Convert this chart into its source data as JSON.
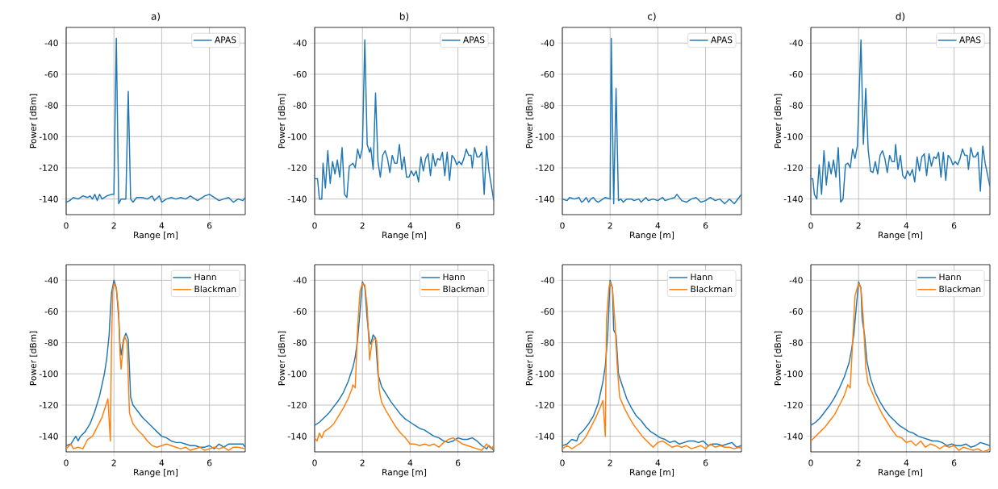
{
  "chart_data": [
    {
      "type": "line",
      "title": "a)",
      "xlabel": "Range [m]",
      "ylabel": "Power [dBm]",
      "xlim": [
        0,
        7.5
      ],
      "ylim": [
        -150,
        -30
      ],
      "xticks": [
        0,
        2,
        4,
        6
      ],
      "yticks": [
        -140,
        -120,
        -100,
        -80,
        -60,
        -40
      ],
      "grid": true,
      "legend": "top right",
      "series": [
        {
          "name": "APAS",
          "color": "#1f77b4",
          "x": [
            0,
            0.15,
            0.3,
            0.5,
            0.7,
            0.9,
            1.0,
            1.1,
            1.2,
            1.3,
            1.4,
            1.5,
            1.7,
            1.9,
            2.0,
            2.1,
            2.2,
            2.3,
            2.5,
            2.6,
            2.7,
            2.8,
            2.95,
            3.2,
            3.4,
            3.6,
            3.7,
            3.9,
            4.0,
            4.2,
            4.4,
            4.6,
            4.8,
            5.0,
            5.2,
            5.4,
            5.5,
            5.8,
            6.0,
            6.2,
            6.4,
            6.6,
            6.8,
            7.0,
            7.2,
            7.4,
            7.5
          ],
          "values": [
            -142,
            -141,
            -139,
            -140,
            -138,
            -139,
            -138,
            -140,
            -137,
            -141,
            -137,
            -140,
            -138,
            -137,
            -137,
            -37,
            -143,
            -140,
            -140,
            -71,
            -140,
            -142,
            -139,
            -139,
            -140,
            -138,
            -141,
            -138,
            -142,
            -140,
            -139,
            -140,
            -139,
            -140,
            -138,
            -140,
            -141,
            -138,
            -137,
            -139,
            -141,
            -140,
            -139,
            -142,
            -140,
            -141,
            -139
          ]
        }
      ]
    },
    {
      "type": "line",
      "title": "b)",
      "xlabel": "Range [m]",
      "ylabel": "Power [dBm]",
      "xlim": [
        0,
        7.5
      ],
      "ylim": [
        -150,
        -30
      ],
      "xticks": [
        0,
        2,
        4,
        6
      ],
      "yticks": [
        -140,
        -120,
        -100,
        -80,
        -60,
        -40
      ],
      "grid": true,
      "legend": "top right",
      "series": [
        {
          "name": "APAS",
          "color": "#1f77b4",
          "x": [
            0,
            0.12,
            0.2,
            0.3,
            0.35,
            0.45,
            0.55,
            0.65,
            0.75,
            0.85,
            0.95,
            1.05,
            1.15,
            1.25,
            1.35,
            1.45,
            1.6,
            1.7,
            1.8,
            1.9,
            2.0,
            2.1,
            2.2,
            2.3,
            2.35,
            2.45,
            2.55,
            2.65,
            2.75,
            2.85,
            2.95,
            3.05,
            3.15,
            3.25,
            3.35,
            3.45,
            3.55,
            3.65,
            3.75,
            3.85,
            3.95,
            4.05,
            4.15,
            4.25,
            4.35,
            4.45,
            4.55,
            4.65,
            4.75,
            4.85,
            4.95,
            5.05,
            5.15,
            5.25,
            5.35,
            5.45,
            5.55,
            5.65,
            5.75,
            5.85,
            5.95,
            6.05,
            6.15,
            6.25,
            6.35,
            6.45,
            6.55,
            6.6,
            6.7,
            6.8,
            6.9,
            7.0,
            7.1,
            7.2,
            7.3,
            7.5
          ],
          "values": [
            -127,
            -127,
            -140,
            -140,
            -117,
            -133,
            -109,
            -130,
            -116,
            -124,
            -115,
            -126,
            -107,
            -137,
            -139,
            -119,
            -117,
            -120,
            -108,
            -114,
            -107,
            -38,
            -105,
            -110,
            -107,
            -121,
            -72,
            -116,
            -126,
            -112,
            -109,
            -114,
            -123,
            -112,
            -117,
            -117,
            -105,
            -121,
            -113,
            -126,
            -126,
            -122,
            -125,
            -122,
            -129,
            -113,
            -122,
            -114,
            -111,
            -125,
            -111,
            -119,
            -114,
            -115,
            -110,
            -125,
            -110,
            -128,
            -112,
            -114,
            -118,
            -116,
            -118,
            -114,
            -108,
            -112,
            -112,
            -120,
            -107,
            -113,
            -113,
            -110,
            -137,
            -106,
            -122,
            -141
          ]
        }
      ]
    },
    {
      "type": "line",
      "title": "c)",
      "xlabel": "Range [m]",
      "ylabel": "Power [dBm]",
      "xlim": [
        0,
        7.5
      ],
      "ylim": [
        -150,
        -30
      ],
      "xticks": [
        0,
        2,
        4,
        6
      ],
      "yticks": [
        -140,
        -120,
        -100,
        -80,
        -60,
        -40
      ],
      "grid": true,
      "legend": "top right",
      "series": [
        {
          "name": "APAS",
          "color": "#1f77b4",
          "x": [
            0,
            0.2,
            0.3,
            0.5,
            0.7,
            0.8,
            0.9,
            1.0,
            1.1,
            1.2,
            1.3,
            1.4,
            1.5,
            1.7,
            1.8,
            2.0,
            2.05,
            2.15,
            2.25,
            2.35,
            2.45,
            2.55,
            2.7,
            2.9,
            3.0,
            3.2,
            3.3,
            3.5,
            3.6,
            3.8,
            4.0,
            4.2,
            4.3,
            4.5,
            4.7,
            4.8,
            5.0,
            5.2,
            5.4,
            5.6,
            5.8,
            6.0,
            6.2,
            6.4,
            6.6,
            6.8,
            7.0,
            7.2,
            7.4,
            7.5
          ],
          "values": [
            -140,
            -141,
            -139,
            -140,
            -139,
            -142,
            -141,
            -139,
            -142,
            -140,
            -139,
            -141,
            -142,
            -140,
            -139,
            -140,
            -37,
            -143,
            -69,
            -141,
            -140,
            -142,
            -140,
            -140,
            -141,
            -140,
            -142,
            -139,
            -141,
            -140,
            -141,
            -139,
            -141,
            -140,
            -139,
            -137,
            -141,
            -142,
            -140,
            -139,
            -142,
            -141,
            -139,
            -141,
            -140,
            -143,
            -140,
            -143,
            -139,
            -137
          ]
        }
      ]
    },
    {
      "type": "line",
      "title": "d)",
      "xlabel": "Range [m]",
      "ylabel": "Power [dBm]",
      "xlim": [
        0,
        7.5
      ],
      "ylim": [
        -150,
        -30
      ],
      "xticks": [
        0,
        2,
        4,
        6
      ],
      "yticks": [
        -140,
        -120,
        -100,
        -80,
        -60,
        -40
      ],
      "grid": true,
      "legend": "top right",
      "series": [
        {
          "name": "APAS",
          "color": "#1f77b4",
          "x": [
            0,
            0.08,
            0.15,
            0.25,
            0.35,
            0.45,
            0.55,
            0.65,
            0.75,
            0.85,
            0.95,
            1.05,
            1.15,
            1.25,
            1.35,
            1.45,
            1.55,
            1.65,
            1.75,
            1.85,
            1.95,
            2.1,
            2.2,
            2.3,
            2.4,
            2.5,
            2.6,
            2.7,
            2.8,
            2.9,
            3.0,
            3.1,
            3.2,
            3.3,
            3.4,
            3.5,
            3.55,
            3.65,
            3.75,
            3.85,
            3.95,
            4.05,
            4.15,
            4.25,
            4.35,
            4.45,
            4.55,
            4.65,
            4.75,
            4.85,
            4.95,
            5.05,
            5.15,
            5.25,
            5.35,
            5.45,
            5.55,
            5.65,
            5.75,
            5.85,
            5.95,
            6.05,
            6.15,
            6.25,
            6.35,
            6.45,
            6.55,
            6.6,
            6.7,
            6.8,
            6.9,
            7.0,
            7.1,
            7.2,
            7.3,
            7.5
          ],
          "values": [
            -127,
            -127,
            -137,
            -140,
            -118,
            -137,
            -109,
            -131,
            -116,
            -124,
            -115,
            -126,
            -107,
            -142,
            -140,
            -118,
            -117,
            -120,
            -108,
            -114,
            -106,
            -38,
            -105,
            -69,
            -108,
            -122,
            -123,
            -116,
            -124,
            -112,
            -109,
            -114,
            -123,
            -112,
            -116,
            -116,
            -105,
            -121,
            -112,
            -125,
            -127,
            -122,
            -125,
            -121,
            -129,
            -113,
            -122,
            -113,
            -111,
            -125,
            -111,
            -119,
            -113,
            -114,
            -110,
            -126,
            -110,
            -128,
            -112,
            -114,
            -118,
            -116,
            -118,
            -114,
            -108,
            -112,
            -112,
            -121,
            -107,
            -113,
            -113,
            -110,
            -135,
            -106,
            -117,
            -132
          ]
        }
      ]
    },
    {
      "type": "line",
      "xlabel": "Range [m]",
      "ylabel": "Power [dBm]",
      "xlim": [
        0,
        7.5
      ],
      "ylim": [
        -150,
        -30
      ],
      "xticks": [
        0,
        2,
        4,
        6
      ],
      "yticks": [
        -140,
        -120,
        -100,
        -80,
        -60,
        -40
      ],
      "grid": true,
      "legend": "top right",
      "series": [
        {
          "name": "Hann",
          "color": "#1f77b4",
          "x": [
            0,
            0.2,
            0.4,
            0.5,
            0.6,
            0.8,
            1.0,
            1.2,
            1.4,
            1.6,
            1.7,
            1.8,
            1.85,
            1.9,
            2.0,
            2.1,
            2.2,
            2.25,
            2.3,
            2.4,
            2.5,
            2.6,
            2.7,
            2.8,
            3.0,
            3.2,
            3.4,
            3.6,
            3.8,
            4.0,
            4.2,
            4.4,
            4.6,
            4.8,
            5.0,
            5.2,
            5.4,
            5.6,
            5.8,
            6.0,
            6.2,
            6.4,
            6.6,
            6.8,
            7.0,
            7.2,
            7.4,
            7.5
          ],
          "values": [
            -146,
            -145,
            -140,
            -143,
            -140,
            -137,
            -132,
            -124,
            -114,
            -100,
            -90,
            -75,
            -60,
            -48,
            -40,
            -45,
            -64,
            -80,
            -88,
            -78,
            -74,
            -78,
            -115,
            -120,
            -124,
            -128,
            -131,
            -134,
            -137,
            -140,
            -141,
            -143,
            -144,
            -144,
            -145,
            -146,
            -146,
            -147,
            -147,
            -146,
            -148,
            -145,
            -147,
            -145,
            -145,
            -145,
            -145,
            -147
          ]
        },
        {
          "name": "Blackman",
          "color": "#ff7f0e",
          "x": [
            0,
            0.2,
            0.3,
            0.5,
            0.7,
            0.9,
            1.1,
            1.3,
            1.5,
            1.6,
            1.75,
            1.85,
            1.9,
            1.95,
            2.0,
            2.1,
            2.2,
            2.25,
            2.3,
            2.4,
            2.45,
            2.55,
            2.65,
            2.8,
            3.0,
            3.2,
            3.4,
            3.6,
            3.8,
            4.0,
            4.2,
            4.4,
            4.6,
            4.8,
            5.0,
            5.2,
            5.4,
            5.6,
            5.8,
            6.0,
            6.2,
            6.4,
            6.6,
            6.8,
            7.0,
            7.2,
            7.5
          ],
          "values": [
            -148,
            -145,
            -148,
            -147,
            -148,
            -142,
            -140,
            -134,
            -128,
            -123,
            -116,
            -143,
            -80,
            -47,
            -42,
            -45,
            -60,
            -86,
            -97,
            -80,
            -76,
            -80,
            -125,
            -132,
            -136,
            -139,
            -143,
            -146,
            -147,
            -146,
            -145,
            -146,
            -147,
            -148,
            -147,
            -149,
            -148,
            -147,
            -149,
            -148,
            -147,
            -148,
            -147,
            -149,
            -147,
            -147,
            -148
          ]
        }
      ]
    },
    {
      "type": "line",
      "xlabel": "Range [m]",
      "ylabel": "Power [dBm]",
      "xlim": [
        0,
        7.5
      ],
      "ylim": [
        -150,
        -30
      ],
      "xticks": [
        0,
        2,
        4,
        6
      ],
      "yticks": [
        -140,
        -120,
        -100,
        -80,
        -60,
        -40
      ],
      "grid": true,
      "legend": "top right",
      "series": [
        {
          "name": "Hann",
          "color": "#1f77b4",
          "x": [
            0,
            0.2,
            0.4,
            0.6,
            0.8,
            1.0,
            1.2,
            1.4,
            1.6,
            1.7,
            1.8,
            1.9,
            2.0,
            2.1,
            2.2,
            2.3,
            2.35,
            2.45,
            2.55,
            2.65,
            2.8,
            3.0,
            3.2,
            3.4,
            3.6,
            3.8,
            4.0,
            4.2,
            4.4,
            4.6,
            4.8,
            5.0,
            5.2,
            5.4,
            5.6,
            5.8,
            6.0,
            6.2,
            6.4,
            6.6,
            6.8,
            7.0,
            7.2,
            7.3,
            7.5
          ],
          "values": [
            -133,
            -131,
            -128,
            -125,
            -121,
            -117,
            -112,
            -105,
            -96,
            -89,
            -78,
            -60,
            -41,
            -44,
            -65,
            -79,
            -81,
            -75,
            -77,
            -100,
            -108,
            -113,
            -118,
            -122,
            -126,
            -129,
            -131,
            -133,
            -135,
            -136,
            -138,
            -140,
            -141,
            -143,
            -144,
            -143,
            -141,
            -142,
            -142,
            -141,
            -143,
            -146,
            -148,
            -146,
            -149
          ]
        },
        {
          "name": "Blackman",
          "color": "#ff7f0e",
          "x": [
            0,
            0.1,
            0.2,
            0.3,
            0.4,
            0.6,
            0.8,
            1.0,
            1.2,
            1.4,
            1.55,
            1.6,
            1.7,
            1.8,
            1.9,
            2.0,
            2.1,
            2.2,
            2.3,
            2.4,
            2.5,
            2.6,
            2.7,
            2.8,
            3.0,
            3.2,
            3.4,
            3.6,
            3.8,
            4.0,
            4.2,
            4.4,
            4.6,
            4.8,
            5.0,
            5.2,
            5.4,
            5.6,
            5.8,
            6.0,
            6.2,
            6.4,
            6.6,
            6.8,
            7.0,
            7.2,
            7.4,
            7.5
          ],
          "values": [
            -141,
            -143,
            -138,
            -141,
            -137,
            -135,
            -132,
            -127,
            -122,
            -116,
            -110,
            -107,
            -109,
            -70,
            -47,
            -42,
            -43,
            -57,
            -91,
            -80,
            -77,
            -79,
            -110,
            -118,
            -124,
            -129,
            -134,
            -138,
            -141,
            -145,
            -145,
            -146,
            -145,
            -146,
            -145,
            -147,
            -144,
            -142,
            -141,
            -143,
            -145,
            -146,
            -147,
            -148,
            -149,
            -145,
            -148,
            -146
          ]
        }
      ]
    },
    {
      "type": "line",
      "xlabel": "Range [m]",
      "ylabel": "Power [dBm]",
      "xlim": [
        0,
        7.5
      ],
      "ylim": [
        -150,
        -30
      ],
      "xticks": [
        0,
        2,
        4,
        6
      ],
      "yticks": [
        -140,
        -120,
        -100,
        -80,
        -60,
        -40
      ],
      "grid": true,
      "legend": "top right",
      "series": [
        {
          "name": "Hann",
          "color": "#1f77b4",
          "x": [
            0,
            0.2,
            0.4,
            0.6,
            0.7,
            0.9,
            1.1,
            1.3,
            1.5,
            1.7,
            1.8,
            1.9,
            2.0,
            2.1,
            2.15,
            2.25,
            2.35,
            2.5,
            2.7,
            2.9,
            3.1,
            3.3,
            3.5,
            3.7,
            3.9,
            4.1,
            4.3,
            4.5,
            4.7,
            4.9,
            5.1,
            5.3,
            5.5,
            5.7,
            5.9,
            6.1,
            6.3,
            6.5,
            6.7,
            6.9,
            7.1,
            7.3,
            7.5
          ],
          "values": [
            -146,
            -145,
            -142,
            -143,
            -139,
            -136,
            -132,
            -127,
            -119,
            -105,
            -95,
            -75,
            -40,
            -45,
            -72,
            -75,
            -100,
            -107,
            -116,
            -122,
            -127,
            -130,
            -134,
            -137,
            -139,
            -141,
            -142,
            -144,
            -143,
            -145,
            -144,
            -143,
            -143,
            -144,
            -143,
            -146,
            -145,
            -145,
            -146,
            -145,
            -144,
            -147,
            -146
          ]
        },
        {
          "name": "Blackman",
          "color": "#ff7f0e",
          "x": [
            0,
            0.2,
            0.4,
            0.6,
            0.8,
            1.0,
            1.2,
            1.4,
            1.6,
            1.7,
            1.8,
            1.85,
            1.95,
            2.0,
            2.1,
            2.2,
            2.3,
            2.4,
            2.6,
            2.8,
            3.0,
            3.2,
            3.4,
            3.6,
            3.8,
            4.0,
            4.2,
            4.4,
            4.6,
            4.8,
            5.0,
            5.2,
            5.4,
            5.6,
            5.8,
            6.0,
            6.2,
            6.4,
            6.6,
            6.8,
            7.0,
            7.2,
            7.4,
            7.5
          ],
          "values": [
            -148,
            -146,
            -148,
            -146,
            -144,
            -140,
            -134,
            -128,
            -121,
            -117,
            -140,
            -65,
            -45,
            -41,
            -45,
            -66,
            -95,
            -115,
            -122,
            -128,
            -133,
            -137,
            -141,
            -144,
            -147,
            -144,
            -143,
            -145,
            -147,
            -146,
            -147,
            -146,
            -148,
            -147,
            -146,
            -148,
            -145,
            -147,
            -146,
            -147,
            -147,
            -148,
            -147,
            -148
          ]
        }
      ]
    },
    {
      "type": "line",
      "xlabel": "Range [m]",
      "ylabel": "Power [dBm]",
      "xlim": [
        0,
        7.5
      ],
      "ylim": [
        -150,
        -30
      ],
      "xticks": [
        0,
        2,
        4,
        6
      ],
      "yticks": [
        -140,
        -120,
        -100,
        -80,
        -60,
        -40
      ],
      "grid": true,
      "legend": "top right",
      "series": [
        {
          "name": "Hann",
          "color": "#1f77b4",
          "x": [
            0,
            0.2,
            0.4,
            0.6,
            0.8,
            1.0,
            1.2,
            1.4,
            1.6,
            1.7,
            1.8,
            1.9,
            2.0,
            2.1,
            2.15,
            2.25,
            2.35,
            2.5,
            2.7,
            2.9,
            3.1,
            3.3,
            3.5,
            3.7,
            3.9,
            4.1,
            4.3,
            4.5,
            4.7,
            4.9,
            5.1,
            5.3,
            5.5,
            5.7,
            5.9,
            6.1,
            6.3,
            6.5,
            6.7,
            6.9,
            7.1,
            7.3,
            7.5
          ],
          "values": [
            -133,
            -131,
            -128,
            -124,
            -120,
            -115,
            -109,
            -102,
            -93,
            -85,
            -75,
            -58,
            -41,
            -45,
            -65,
            -75,
            -92,
            -103,
            -112,
            -118,
            -123,
            -127,
            -130,
            -133,
            -135,
            -137,
            -138,
            -140,
            -141,
            -142,
            -143,
            -143,
            -144,
            -146,
            -145,
            -146,
            -146,
            -145,
            -147,
            -146,
            -144,
            -145,
            -146
          ]
        },
        {
          "name": "Blackman",
          "color": "#ff7f0e",
          "x": [
            0,
            0.2,
            0.4,
            0.6,
            0.8,
            1.0,
            1.2,
            1.4,
            1.55,
            1.65,
            1.75,
            1.85,
            2.0,
            2.1,
            2.2,
            2.3,
            2.4,
            2.6,
            2.8,
            3.0,
            3.2,
            3.4,
            3.6,
            3.8,
            4.0,
            4.2,
            4.4,
            4.6,
            4.8,
            5.0,
            5.2,
            5.4,
            5.6,
            5.8,
            6.0,
            6.2,
            6.4,
            6.6,
            6.8,
            7.0,
            7.2,
            7.4,
            7.5
          ],
          "values": [
            -143,
            -140,
            -137,
            -134,
            -130,
            -126,
            -120,
            -114,
            -107,
            -109,
            -80,
            -50,
            -42,
            -45,
            -65,
            -96,
            -106,
            -113,
            -120,
            -126,
            -131,
            -136,
            -140,
            -141,
            -144,
            -143,
            -146,
            -143,
            -147,
            -145,
            -146,
            -148,
            -146,
            -147,
            -146,
            -149,
            -147,
            -148,
            -149,
            -148,
            -150,
            -149,
            -148
          ]
        }
      ]
    }
  ]
}
